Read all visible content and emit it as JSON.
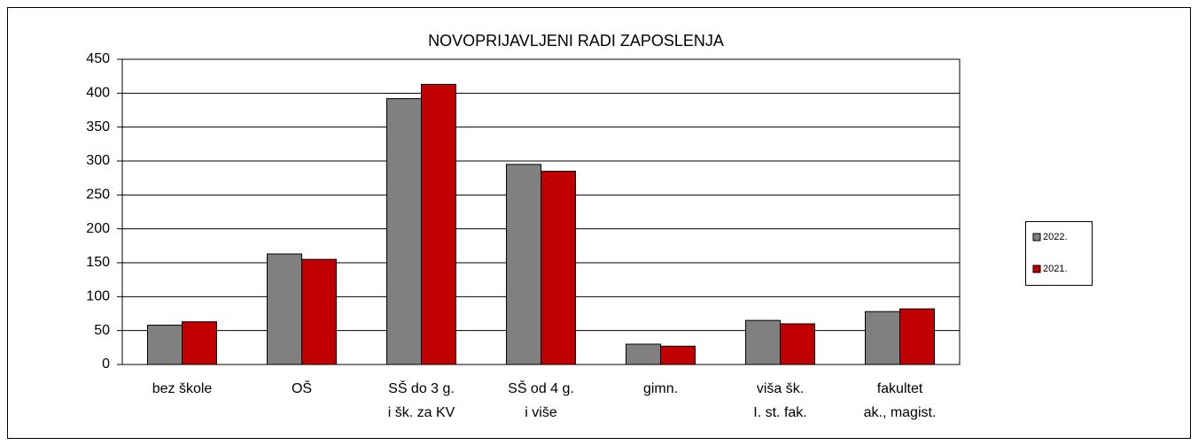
{
  "chart_data": {
    "type": "bar",
    "title": "NOVOPRIJAVLJENI RADI ZAPOSLENJA",
    "categories": [
      [
        "bez škole"
      ],
      [
        "OŠ"
      ],
      [
        "SŠ do 3 g.",
        "i šk. za KV"
      ],
      [
        "SŠ od 4 g.",
        "i više"
      ],
      [
        "gimn."
      ],
      [
        "viša šk.",
        "I. st. fak."
      ],
      [
        "fakultet",
        "ak., magist."
      ]
    ],
    "series": [
      {
        "name": "2022.",
        "color": "#808080",
        "values": [
          58,
          163,
          392,
          295,
          30,
          65,
          78
        ]
      },
      {
        "name": "2021.",
        "color": "#c00000",
        "values": [
          63,
          155,
          413,
          285,
          27,
          60,
          82
        ]
      }
    ],
    "ylim": [
      0,
      450
    ],
    "yticks": [
      0,
      50,
      100,
      150,
      200,
      250,
      300,
      350,
      400,
      450
    ],
    "grid": true,
    "legend": "right"
  }
}
